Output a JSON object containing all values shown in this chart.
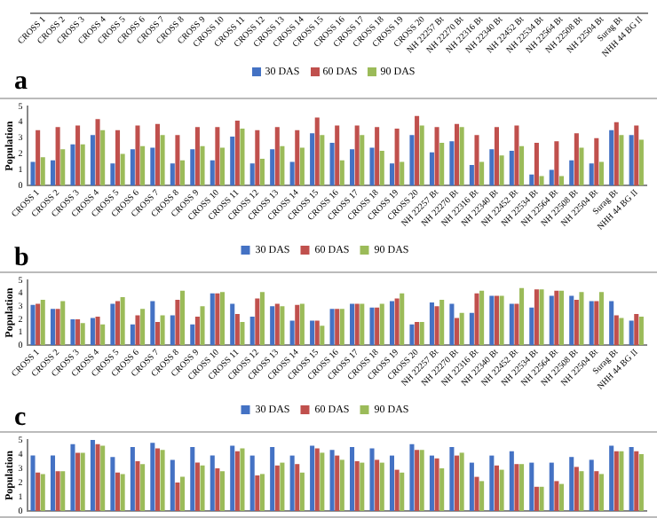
{
  "chart_data": [
    {
      "type": "other",
      "categories": [
        "CROSS 1",
        "CROSS 2",
        "CROSS 3",
        "CROSS 4",
        "CROSS 5",
        "CROSS 6",
        "CROSS 7",
        "CROSS 8",
        "CROSS 9",
        "CROSS 10",
        "CROSS 11",
        "CROSS 12",
        "CROSS 13",
        "CROSS 14",
        "CROSS 15",
        "CROSS 16",
        "CROSS 17",
        "CROSS 18",
        "CROSS 19",
        "CROSS 20",
        "NH 22257 Bt",
        "NH 22270 Bt",
        "NH 22316 Bt",
        "NH 22340 Bt",
        "NH 22452 Bt",
        "NH 22534 Bt",
        "NH 22564 Bt",
        "NH 22508 Bt",
        "NH 22504 Bt",
        "Surag Bt",
        "NHH 44 BG II"
      ],
      "annotations": [
        "a",
        "30 DAS",
        "60 DAS",
        "90 DAS"
      ]
    },
    {
      "type": "bar",
      "ylabel": "Population",
      "categories": [
        "CROSS 1",
        "CROSS 2",
        "CROSS 3",
        "CROSS 4",
        "CROSS 5",
        "CROSS 6",
        "CROSS 7",
        "CROSS 8",
        "CROSS 9",
        "CROSS 10",
        "CROSS 11",
        "CROSS 12",
        "CROSS 13",
        "CROSS 14",
        "CROSS 15",
        "CROSS 16",
        "CROSS 17",
        "CROSS 18",
        "CROSS 19",
        "CROSS 20",
        "NH 22257 Bt",
        "NH 22270 Bt",
        "NH 22316 Bt",
        "NH 22340 Bt",
        "NH 22452 Bt",
        "NH 22534 Bt",
        "NH 22564 Bt",
        "NH 22508 Bt",
        "NH 22504 Bt",
        "Surag Bt",
        "NHH 44 BG II"
      ],
      "ylim": [
        0,
        5
      ],
      "yticks": [
        0,
        1,
        2,
        3,
        4,
        5
      ],
      "legend": "bottom",
      "annotations": [
        "b"
      ],
      "series": [
        {
          "name": "30 DAS",
          "color": "#4472c4",
          "values": [
            1.5,
            1.6,
            2.6,
            3.2,
            1.4,
            2.3,
            2.4,
            1.4,
            2.3,
            1.6,
            3.1,
            1.4,
            2.3,
            1.5,
            3.3,
            2.7,
            2.3,
            2.4,
            1.4,
            3.2,
            2.1,
            2.8,
            1.3,
            2.3,
            2.2,
            0.7,
            1.0,
            1.6,
            1.4,
            3.5,
            3.2
          ]
        },
        {
          "name": "60 DAS",
          "color": "#c0504d",
          "values": [
            3.5,
            3.7,
            3.8,
            4.2,
            3.5,
            3.8,
            3.9,
            3.2,
            3.7,
            3.7,
            4.1,
            3.5,
            3.7,
            3.5,
            4.3,
            3.8,
            3.8,
            3.7,
            3.6,
            4.4,
            3.7,
            3.9,
            3.2,
            3.7,
            3.8,
            2.7,
            2.8,
            3.3,
            3.0,
            4.0,
            3.8
          ]
        },
        {
          "name": "90 DAS",
          "color": "#9bbb59",
          "values": [
            1.8,
            2.3,
            2.6,
            3.5,
            2.0,
            2.5,
            3.2,
            1.6,
            2.5,
            2.4,
            3.6,
            1.7,
            2.5,
            2.4,
            3.2,
            1.6,
            3.2,
            2.2,
            1.5,
            3.8,
            2.7,
            3.7,
            1.5,
            1.9,
            2.5,
            0.6,
            0.6,
            2.4,
            1.5,
            3.2,
            2.9
          ]
        }
      ]
    },
    {
      "type": "bar",
      "ylabel": "Population",
      "categories": [
        "CROSS 1",
        "CROSS 2",
        "CROSS 3",
        "CROSS 4",
        "CROSS 5",
        "CROSS 6",
        "CROSS 7",
        "CROSS 8",
        "CROSS 9",
        "CROSS 10",
        "CROSS 11",
        "CROSS 12",
        "CROSS 13",
        "CROSS 14",
        "CROSS 15",
        "CROSS 16",
        "CROSS 17",
        "CROSS 18",
        "CROSS 19",
        "CROSS 20",
        "NH 22257 Bt",
        "NH 22270 Bt",
        "NH 22316 Bt",
        "NH 22340 Bt",
        "NH 22452 Bt",
        "NH 22534 Bt",
        "NH 22564 Bt",
        "NH 22508 Bt",
        "NH 22504 Bt",
        "Surag Bt",
        "NHH 44 BG II"
      ],
      "ylim": [
        0,
        5
      ],
      "yticks": [
        0,
        1,
        2,
        3,
        4,
        5
      ],
      "legend": "bottom",
      "annotations": [
        "c"
      ],
      "series": [
        {
          "name": "30 DAS",
          "color": "#4472c4",
          "values": [
            3.1,
            2.8,
            2.0,
            2.1,
            3.2,
            1.6,
            3.4,
            2.3,
            1.6,
            4.0,
            3.2,
            2.2,
            3.0,
            1.9,
            1.9,
            2.8,
            3.2,
            2.9,
            3.4,
            1.6,
            3.3,
            3.2,
            2.5,
            3.8,
            3.2,
            2.9,
            3.8,
            3.8,
            3.4,
            3.4,
            1.9
          ]
        },
        {
          "name": "60 DAS",
          "color": "#c0504d",
          "values": [
            3.2,
            2.8,
            2.0,
            2.2,
            3.4,
            2.3,
            1.8,
            3.5,
            2.2,
            4.0,
            2.4,
            3.6,
            3.2,
            3.1,
            1.9,
            2.8,
            3.2,
            2.9,
            3.6,
            1.8,
            3.0,
            2.1,
            4.0,
            3.8,
            3.2,
            4.3,
            4.2,
            3.5,
            3.4,
            2.3,
            2.4
          ]
        },
        {
          "name": "90 DAS",
          "color": "#9bbb59",
          "values": [
            3.5,
            3.4,
            1.7,
            1.6,
            3.7,
            2.8,
            2.3,
            4.2,
            3.0,
            4.1,
            1.8,
            4.1,
            3.0,
            3.2,
            1.5,
            2.8,
            3.2,
            3.2,
            4.0,
            1.8,
            3.5,
            2.5,
            4.2,
            3.8,
            4.4,
            4.3,
            4.2,
            4.1,
            4.1,
            2.1,
            2.2
          ]
        }
      ]
    },
    {
      "type": "bar",
      "ylabel": "Population",
      "categories": [
        null,
        null,
        null,
        null,
        null,
        null,
        null,
        null,
        null,
        null,
        null,
        null,
        null,
        null,
        null,
        null,
        null,
        null,
        null,
        null,
        null,
        null,
        null,
        null,
        null,
        null,
        null,
        null,
        null,
        null,
        null
      ],
      "ylim": [
        0,
        5
      ],
      "yticks": [
        0,
        1,
        2,
        3,
        4,
        5
      ],
      "tick_labels": "y",
      "series": [
        {
          "color": "#4472c4",
          "values": [
            3.9,
            3.9,
            4.7,
            5.0,
            3.8,
            4.5,
            4.8,
            3.6,
            4.5,
            3.9,
            4.6,
            3.9,
            4.5,
            3.9,
            4.6,
            4.3,
            4.5,
            4.4,
            3.9,
            4.7,
            3.9,
            4.5,
            3.4,
            3.9,
            4.2,
            3.4,
            3.4,
            3.8,
            3.6,
            4.6,
            4.5
          ]
        },
        {
          "color": "#c0504d",
          "values": [
            2.7,
            2.8,
            4.1,
            4.7,
            2.7,
            3.5,
            4.4,
            2.0,
            3.4,
            3.0,
            4.2,
            2.5,
            3.2,
            3.3,
            4.4,
            3.9,
            3.5,
            3.6,
            2.9,
            4.3,
            3.7,
            3.9,
            2.4,
            3.2,
            3.3,
            1.7,
            2.1,
            3.1,
            2.8,
            4.2,
            4.2
          ]
        },
        {
          "color": "#9bbb59",
          "values": [
            2.6,
            2.8,
            4.1,
            4.6,
            2.6,
            3.3,
            4.3,
            2.4,
            3.2,
            2.8,
            4.4,
            2.6,
            3.4,
            2.7,
            4.1,
            3.6,
            3.4,
            3.4,
            2.7,
            4.3,
            3.0,
            4.1,
            2.1,
            2.9,
            3.3,
            1.7,
            1.9,
            2.8,
            2.6,
            4.2,
            4.0
          ]
        }
      ]
    }
  ]
}
